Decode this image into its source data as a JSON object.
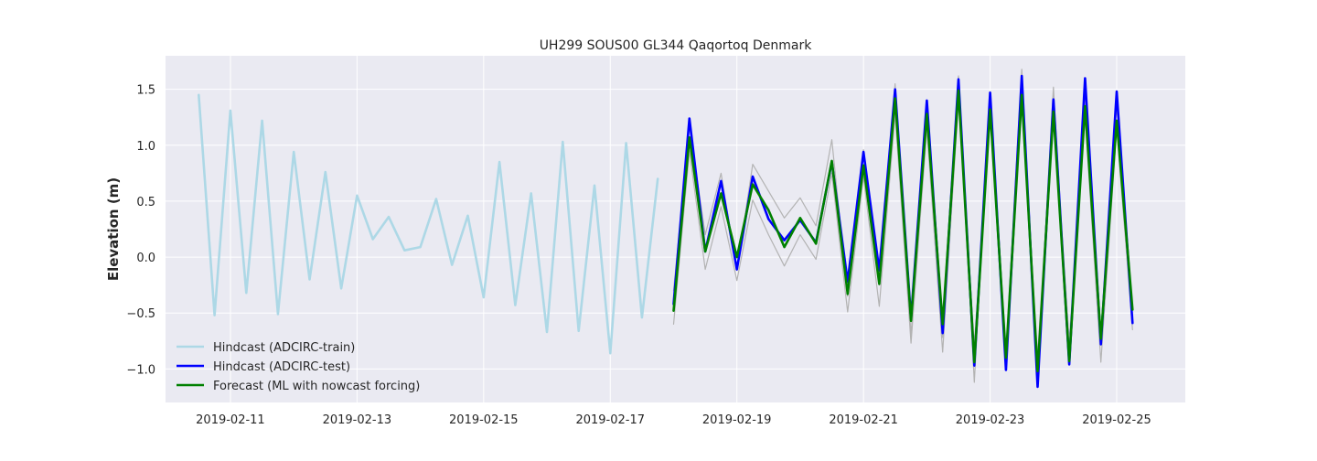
{
  "chart_data": {
    "type": "line",
    "title": "UH299 SOUS00 GL344 Qaqortoq Denmark",
    "xlabel": "",
    "ylabel": "Elevation (m)",
    "xlim": [
      "2019-02-09T23:24",
      "2019-02-26T02:00"
    ],
    "ylim": [
      -1.3,
      1.8
    ],
    "x_ticks": [
      "2019-02-11",
      "2019-02-13",
      "2019-02-15",
      "2019-02-17",
      "2019-02-19",
      "2019-02-21",
      "2019-02-23",
      "2019-02-25"
    ],
    "y_ticks": [
      -1.0,
      -0.5,
      0.0,
      0.5,
      1.0,
      1.5
    ],
    "y_tick_labels": [
      "−1.0",
      "−0.5",
      "0.0",
      "0.5",
      "1.0",
      "1.5"
    ],
    "grid": true,
    "legend_position": "lower-left",
    "series": [
      {
        "name": "Hindcast (ADCIRC-train)",
        "color": "#add8e6",
        "in_legend": true,
        "x": [
          "2019-02-10T12:00",
          "2019-02-10T18:00",
          "2019-02-11T00:00",
          "2019-02-11T06:00",
          "2019-02-11T12:00",
          "2019-02-11T18:00",
          "2019-02-12T00:00",
          "2019-02-12T06:00",
          "2019-02-12T12:00",
          "2019-02-12T18:00",
          "2019-02-13T00:00",
          "2019-02-13T06:00",
          "2019-02-13T12:00",
          "2019-02-13T18:00",
          "2019-02-14T00:00",
          "2019-02-14T06:00",
          "2019-02-14T12:00",
          "2019-02-14T18:00",
          "2019-02-15T00:00",
          "2019-02-15T06:00",
          "2019-02-15T12:00",
          "2019-02-15T18:00",
          "2019-02-16T00:00",
          "2019-02-16T06:00",
          "2019-02-16T12:00",
          "2019-02-16T18:00",
          "2019-02-17T00:00",
          "2019-02-17T06:00",
          "2019-02-17T12:00",
          "2019-02-17T18:00"
        ],
        "values": [
          1.45,
          -0.52,
          1.31,
          -0.32,
          1.22,
          -0.51,
          0.94,
          -0.2,
          0.76,
          -0.28,
          0.55,
          0.16,
          0.36,
          0.06,
          0.09,
          0.52,
          -0.07,
          0.37,
          -0.36,
          0.85,
          -0.43,
          0.57,
          -0.67,
          1.03,
          -0.66,
          0.64,
          -0.86,
          1.02,
          -0.54,
          0.7
        ]
      },
      {
        "name": "",
        "color": "#b3b3b3",
        "in_legend": false,
        "x": [
          "2019-02-18T00:00",
          "2019-02-18T06:00",
          "2019-02-18T12:00",
          "2019-02-18T18:00",
          "2019-02-19T00:00",
          "2019-02-19T06:00",
          "2019-02-19T12:00",
          "2019-02-19T18:00",
          "2019-02-20T00:00",
          "2019-02-20T06:00",
          "2019-02-20T12:00",
          "2019-02-20T18:00",
          "2019-02-21T00:00",
          "2019-02-21T06:00",
          "2019-02-21T12:00",
          "2019-02-21T18:00",
          "2019-02-22T00:00",
          "2019-02-22T06:00",
          "2019-02-22T12:00",
          "2019-02-22T18:00",
          "2019-02-23T00:00",
          "2019-02-23T06:00",
          "2019-02-23T12:00",
          "2019-02-23T18:00",
          "2019-02-24T00:00",
          "2019-02-24T06:00",
          "2019-02-24T12:00",
          "2019-02-24T18:00",
          "2019-02-25T00:00",
          "2019-02-25T06:00"
        ],
        "values": [
          -0.3,
          1.17,
          0.2,
          0.75,
          -0.12,
          0.83,
          0.59,
          0.35,
          0.53,
          0.28,
          1.05,
          -0.35,
          0.96,
          -0.25,
          1.55,
          -0.7,
          1.38,
          -0.72,
          1.62,
          -1.12,
          1.48,
          -0.85,
          1.68,
          -1.04,
          1.52,
          -0.9,
          1.42,
          -0.78,
          1.35,
          -0.58
        ]
      },
      {
        "name": "",
        "color": "#b3b3b3",
        "in_legend": false,
        "x": [
          "2019-02-18T00:00",
          "2019-02-18T06:00",
          "2019-02-18T12:00",
          "2019-02-18T18:00",
          "2019-02-19T00:00",
          "2019-02-19T06:00",
          "2019-02-19T12:00",
          "2019-02-19T18:00",
          "2019-02-20T00:00",
          "2019-02-20T06:00",
          "2019-02-20T12:00",
          "2019-02-20T18:00",
          "2019-02-21T00:00",
          "2019-02-21T06:00",
          "2019-02-21T12:00",
          "2019-02-21T18:00",
          "2019-02-22T00:00",
          "2019-02-22T06:00",
          "2019-02-22T12:00",
          "2019-02-22T18:00",
          "2019-02-23T00:00",
          "2019-02-23T06:00",
          "2019-02-23T12:00",
          "2019-02-23T18:00",
          "2019-02-24T00:00",
          "2019-02-24T06:00",
          "2019-02-24T12:00",
          "2019-02-24T18:00",
          "2019-02-25T00:00",
          "2019-02-25T06:00"
        ],
        "values": [
          -0.6,
          0.95,
          -0.11,
          0.45,
          -0.21,
          0.51,
          0.2,
          -0.08,
          0.2,
          -0.02,
          0.75,
          -0.49,
          0.72,
          -0.44,
          1.28,
          -0.77,
          1.15,
          -0.85,
          1.4,
          -0.78,
          1.25,
          -0.95,
          1.42,
          -0.88,
          1.35,
          -0.75,
          1.25,
          -0.94,
          1.15,
          -0.65
        ]
      },
      {
        "name": "Hindcast (ADCIRC-test)",
        "color": "#0000ff",
        "in_legend": true,
        "x": [
          "2019-02-18T00:00",
          "2019-02-18T06:00",
          "2019-02-18T12:00",
          "2019-02-18T18:00",
          "2019-02-19T00:00",
          "2019-02-19T06:00",
          "2019-02-19T12:00",
          "2019-02-19T18:00",
          "2019-02-20T00:00",
          "2019-02-20T06:00",
          "2019-02-20T12:00",
          "2019-02-20T18:00",
          "2019-02-21T00:00",
          "2019-02-21T06:00",
          "2019-02-21T12:00",
          "2019-02-21T18:00",
          "2019-02-22T00:00",
          "2019-02-22T06:00",
          "2019-02-22T12:00",
          "2019-02-22T18:00",
          "2019-02-23T00:00",
          "2019-02-23T06:00",
          "2019-02-23T12:00",
          "2019-02-23T18:00",
          "2019-02-24T00:00",
          "2019-02-24T06:00",
          "2019-02-24T12:00",
          "2019-02-24T18:00",
          "2019-02-25T00:00",
          "2019-02-25T06:00"
        ],
        "values": [
          -0.42,
          1.24,
          0.05,
          0.68,
          -0.11,
          0.72,
          0.34,
          0.15,
          0.33,
          0.13,
          0.85,
          -0.22,
          0.94,
          -0.12,
          1.5,
          -0.55,
          1.4,
          -0.68,
          1.59,
          -0.97,
          1.47,
          -1.01,
          1.62,
          -1.16,
          1.41,
          -0.96,
          1.6,
          -0.78,
          1.48,
          -0.59
        ]
      },
      {
        "name": "Forecast (ML with nowcast forcing)",
        "color": "#008000",
        "in_legend": true,
        "x": [
          "2019-02-18T00:00",
          "2019-02-18T06:00",
          "2019-02-18T12:00",
          "2019-02-18T18:00",
          "2019-02-19T00:00",
          "2019-02-19T06:00",
          "2019-02-19T12:00",
          "2019-02-19T18:00",
          "2019-02-20T00:00",
          "2019-02-20T06:00",
          "2019-02-20T12:00",
          "2019-02-20T18:00",
          "2019-02-21T00:00",
          "2019-02-21T06:00",
          "2019-02-21T12:00",
          "2019-02-21T18:00",
          "2019-02-22T00:00",
          "2019-02-22T06:00",
          "2019-02-22T12:00",
          "2019-02-22T18:00",
          "2019-02-23T00:00",
          "2019-02-23T06:00",
          "2019-02-23T12:00",
          "2019-02-23T18:00",
          "2019-02-24T00:00",
          "2019-02-24T06:00",
          "2019-02-24T12:00",
          "2019-02-24T18:00",
          "2019-02-25T00:00",
          "2019-02-25T06:00"
        ],
        "values": [
          -0.48,
          1.07,
          0.05,
          0.57,
          0.0,
          0.65,
          0.42,
          0.09,
          0.35,
          0.12,
          0.86,
          -0.33,
          0.82,
          -0.24,
          1.42,
          -0.57,
          1.28,
          -0.6,
          1.49,
          -0.94,
          1.32,
          -0.9,
          1.45,
          -1.02,
          1.3,
          -0.93,
          1.35,
          -0.73,
          1.22,
          -0.47
        ]
      }
    ]
  }
}
